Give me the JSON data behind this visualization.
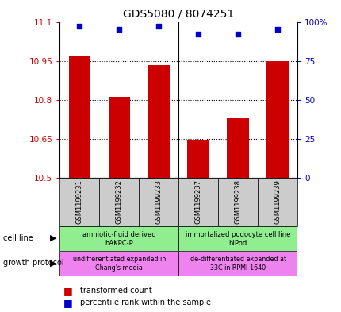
{
  "title": "GDS5080 / 8074251",
  "samples": [
    "GSM1199231",
    "GSM1199232",
    "GSM1199233",
    "GSM1199237",
    "GSM1199238",
    "GSM1199239"
  ],
  "bar_values": [
    10.97,
    10.81,
    10.935,
    10.648,
    10.73,
    10.95
  ],
  "percentile_values": [
    97,
    95,
    97,
    92,
    92,
    95
  ],
  "ylim_left": [
    10.5,
    11.1
  ],
  "ylim_right": [
    0,
    100
  ],
  "yticks_left": [
    10.5,
    10.65,
    10.8,
    10.95,
    11.1
  ],
  "yticks_right": [
    0,
    25,
    50,
    75,
    100
  ],
  "ytick_labels_left": [
    "10.5",
    "10.65",
    "10.8",
    "10.95",
    "11.1"
  ],
  "ytick_labels_right": [
    "0",
    "25",
    "50",
    "75",
    "100%"
  ],
  "bar_color": "#cc0000",
  "marker_color": "#0000cc",
  "cell_line_label1": "amniotic-fluid derived\nhAKPC-P",
  "cell_line_label2": "immortalized podocyte cell line\nhIPod",
  "cell_line_color": "#90ee90",
  "growth_label1": "undifferentiated expanded in\nChang's media",
  "growth_label2": "de-differentiated expanded at\n33C in RPMI-1640",
  "growth_color": "#ee82ee",
  "sample_bg_color": "#cccccc",
  "background_color": "#ffffff"
}
